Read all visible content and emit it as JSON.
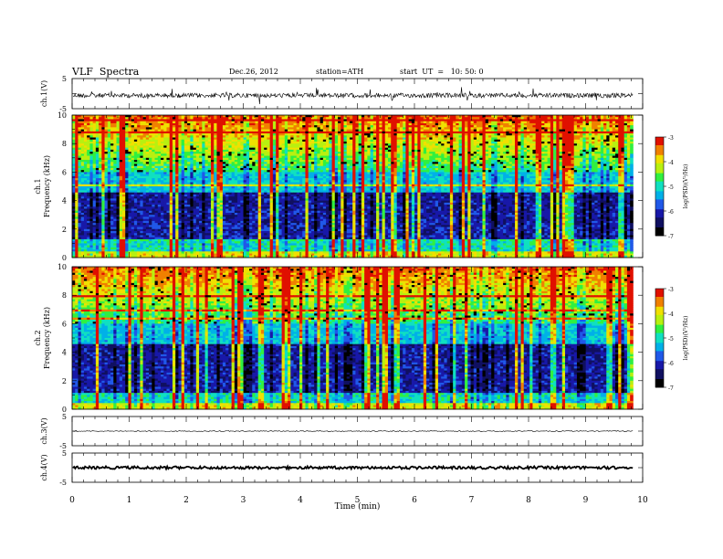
{
  "header": {
    "title": "VLF  Spectra",
    "date": "Dec.26, 2012",
    "station": "station=ATH",
    "start": "start  UT  =   10: 50: 0"
  },
  "chart_data": [
    {
      "type": "line",
      "panel": "ch1",
      "ylabel": "ch.1(V)",
      "yticks": [
        "5",
        "-5"
      ],
      "ylim": [
        -5,
        5
      ],
      "series": [
        {
          "level": 0.0,
          "noise": "high",
          "spikes": true
        }
      ]
    },
    {
      "type": "heatmap",
      "panel": "ch1-spectrogram",
      "ylabel_top": "ch.1",
      "ylabel": "Frequency  (kHz)",
      "yticks": [
        "10",
        "8",
        "6",
        "4",
        "2",
        "0"
      ],
      "ylim": [
        0,
        10
      ],
      "colorbar": {
        "label": "log(PSD)(V²/Hz)",
        "ticks": [
          "-3",
          "-4",
          "-5",
          "-6",
          "-7"
        ],
        "range": [
          -7,
          -3
        ]
      }
    },
    {
      "type": "heatmap",
      "panel": "ch2-spectrogram",
      "ylabel_top": "ch.2",
      "ylabel": "Frequency  (kHz)",
      "yticks": [
        "10",
        "8",
        "6",
        "4",
        "2",
        "0"
      ],
      "ylim": [
        0,
        10
      ],
      "colorbar": {
        "label": "log(PSD)(V²/Hz)",
        "ticks": [
          "-3",
          "-4",
          "-5",
          "-6",
          "-7"
        ],
        "range": [
          -7,
          -3
        ]
      }
    },
    {
      "type": "line",
      "panel": "ch3",
      "ylabel": "ch.3(V)",
      "yticks": [
        "5",
        "-5"
      ],
      "ylim": [
        -5,
        5
      ],
      "series": [
        {
          "level": 0.0,
          "noise": "low"
        }
      ]
    },
    {
      "type": "line",
      "panel": "ch4",
      "ylabel": "ch.4(V)",
      "yticks": [
        "5",
        "-5"
      ],
      "ylim": [
        -5,
        5
      ],
      "series": [
        {
          "level": 0.0,
          "noise": "thick"
        }
      ]
    }
  ],
  "x_axis": {
    "label": "Time  (min)",
    "ticks": [
      "0",
      "1",
      "2",
      "3",
      "4",
      "5",
      "6",
      "7",
      "8",
      "9",
      "10"
    ],
    "xlim": [
      0,
      10
    ],
    "data_end": 9.83
  },
  "colormap": [
    "#000000",
    "#101060",
    "#1818a8",
    "#2058e8",
    "#00b0e8",
    "#10e0c0",
    "#30f040",
    "#b8f010",
    "#f0e000",
    "#f08000",
    "#e01000",
    "#ffffff"
  ]
}
